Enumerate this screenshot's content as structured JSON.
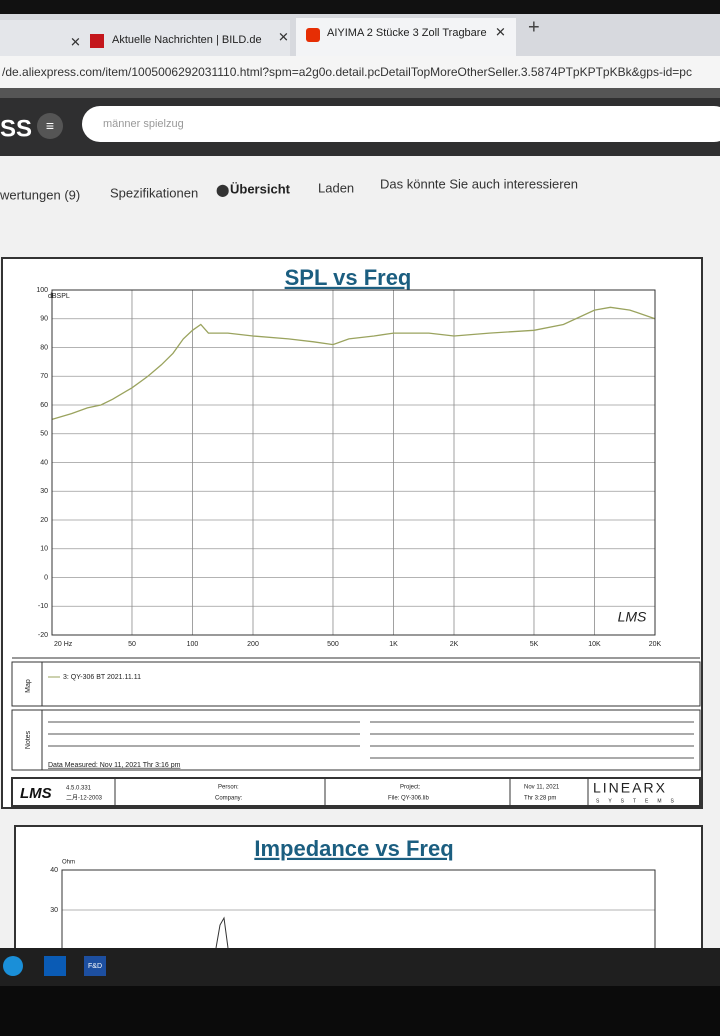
{
  "browser": {
    "tabs": [
      "Aktuelle Nachrichten | BILD.de",
      "AIYIMA 2 Stücke 3 Zoll Tragbare"
    ],
    "url": "/de.aliexpress.com/item/1005006292031110.html?spm=a2g0o.detail.pcDetailTopMoreOtherSeller.3.5874PTpKPTpKBk&gps-id=pc",
    "logo": "SS",
    "search_placeholder": "männer spielzug"
  },
  "nav": [
    "wertungen (9)",
    "Spezifikationen",
    "Übersicht",
    "Laden",
    "Das könnte Sie auch interessieren"
  ],
  "spl_chart": {
    "type": "line",
    "title": "SPL vs Freq",
    "y_unit": "dBSPL",
    "watermark": "LMS",
    "x": [
      20,
      25,
      30,
      35,
      40,
      50,
      60,
      70,
      80,
      90,
      100,
      110,
      120,
      150,
      200,
      300,
      400,
      500,
      600,
      800,
      1000,
      1500,
      2000,
      3000,
      5000,
      7000,
      10000,
      12000,
      15000,
      20000
    ],
    "series": [
      {
        "name": "3: QY-306 BT 2021.11.11",
        "color": "#9aa35e",
        "values": [
          55,
          57,
          59,
          60,
          62,
          66,
          70,
          74,
          78,
          83,
          86,
          88,
          85,
          85,
          84,
          83,
          82,
          81,
          83,
          84,
          85,
          85,
          84,
          85,
          86,
          88,
          93,
          94,
          93,
          90
        ]
      }
    ],
    "xscale": "log",
    "xlim": [
      20,
      20000
    ],
    "xticks": [
      {
        "value": 20,
        "label": "20 Hz"
      },
      50,
      100,
      200,
      500,
      {
        "value": 1000,
        "label": "1K"
      },
      {
        "value": 2000,
        "label": "2K"
      },
      {
        "value": 5000,
        "label": "5K"
      },
      {
        "value": 10000,
        "label": "10K"
      },
      {
        "value": 20000,
        "label": "20K"
      }
    ],
    "ylim": [
      -20,
      100
    ],
    "yticks": [
      -20,
      -10,
      0,
      10,
      20,
      30,
      40,
      50,
      60,
      70,
      80,
      90,
      100
    ],
    "grid": true
  },
  "panel": {
    "map_label": "Map",
    "notes_label": "Notes",
    "data_measured": "Data Measured: Nov 11, 2021  Thr  3:16 pm"
  },
  "footer": {
    "logo": "LMS",
    "version": "4.5.0.331",
    "date_code": "二月-12-2003",
    "person": "Person:",
    "company": "Company:",
    "project": "Project:",
    "file": "File: QY-306.lib",
    "date": "Nov 11, 2021",
    "time": "Thr  3:28 pm",
    "brand": "LINEARX",
    "brand_sub": "SYSTEMS"
  },
  "impedance_chart": {
    "type": "line",
    "title": "Impedance vs Freq",
    "y_unit": "Ohm",
    "ylim": [
      0,
      40
    ],
    "yticks": [
      30,
      40
    ],
    "grid": true
  },
  "taskbar": {
    "app_label": "F&D"
  }
}
